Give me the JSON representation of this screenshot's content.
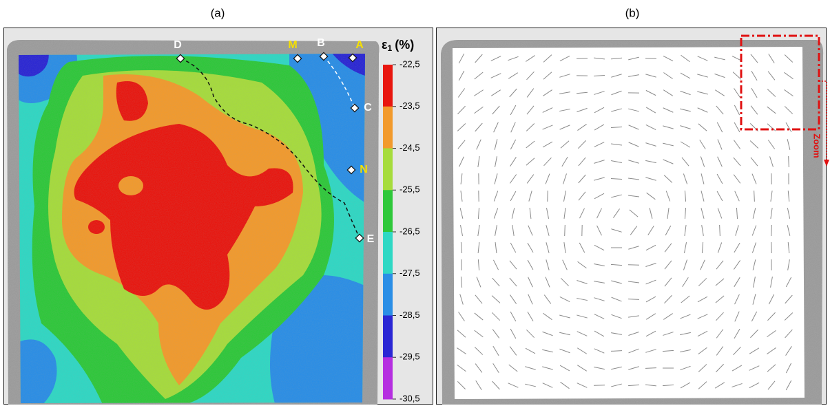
{
  "panels": [
    {
      "label": "(a)",
      "colorbar": {
        "symbol": "ε",
        "subscript": "1",
        "unit": "(%)",
        "labels": [
          "-22,5",
          "-23,5",
          "-24,5",
          "-25,5",
          "-26,5",
          "-27,5",
          "-28,5",
          "-29,5",
          "-30,5"
        ],
        "colors": [
          "#e8160f",
          "#f29a2c",
          "#a6dc3c",
          "#2ec83a",
          "#2fd8c4",
          "#2a8ee6",
          "#2a26d4",
          "#b52ee0"
        ]
      },
      "points": [
        "D",
        "M",
        "B",
        "A",
        "C",
        "N",
        "E"
      ]
    },
    {
      "label": "(b)",
      "annotation": "Zoom"
    }
  ]
}
